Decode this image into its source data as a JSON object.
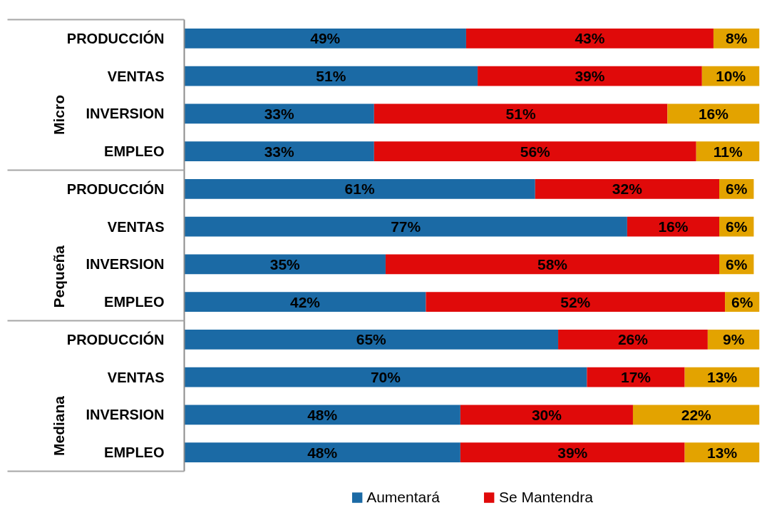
{
  "chart_data": {
    "type": "bar",
    "orientation": "horizontal",
    "stacked": true,
    "categories": [
      "PRODUCCIÓN",
      "VENTAS",
      "INVERSION",
      "EMPLEO",
      "PRODUCCIÓN",
      "VENTAS",
      "INVERSION",
      "EMPLEO",
      "PRODUCCIÓN",
      "VENTAS",
      "INVERSION",
      "EMPLEO"
    ],
    "series": [
      {
        "name": "Aumentará",
        "color": "#1b6aa5",
        "values": [
          49,
          51,
          33,
          33,
          61,
          77,
          35,
          42,
          65,
          70,
          48,
          48
        ],
        "value_labels": [
          "49%",
          "51%",
          "33%",
          "33%",
          "61%",
          "77%",
          "35%",
          "42%",
          "65%",
          "70%",
          "48%",
          "48%"
        ]
      },
      {
        "name": "Se Mantendra",
        "color": "#e00a0a",
        "values": [
          43,
          39,
          51,
          56,
          32,
          16,
          58,
          52,
          26,
          17,
          30,
          39
        ],
        "value_labels": [
          "43%",
          "39%",
          "51%",
          "56%",
          "32%",
          "16%",
          "58%",
          "52%",
          "26%",
          "17%",
          "30%",
          "39%"
        ]
      },
      {
        "color": "#e3a300",
        "values": [
          8,
          10,
          16,
          11,
          6,
          6,
          6,
          6,
          9,
          13,
          22,
          13
        ],
        "value_labels": [
          "8%",
          "10%",
          "16%",
          "11%",
          "6%",
          "6%",
          "6%",
          "6%",
          "9%",
          "13%",
          "22%",
          "13%"
        ]
      }
    ],
    "annotations": [
      "Micro",
      "Pequeña",
      "Mediana"
    ],
    "legend": "bottom",
    "grid": false
  }
}
